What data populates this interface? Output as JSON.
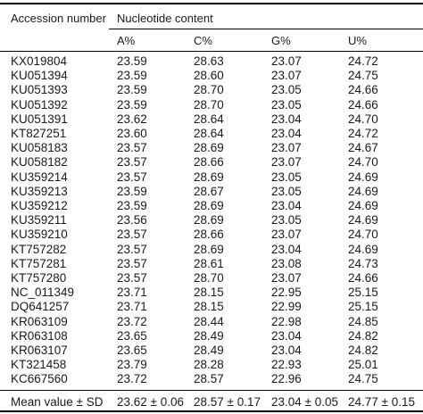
{
  "table": {
    "header": {
      "accession": "Accession number",
      "group": "Nucleotide content",
      "cols": [
        "A%",
        "C%",
        "G%",
        "U%"
      ]
    },
    "rows": [
      {
        "acc": "KX019804",
        "a": "23.59",
        "c": "28.63",
        "g": "23.07",
        "u": "24.72"
      },
      {
        "acc": "KU051394",
        "a": "23.59",
        "c": "28.60",
        "g": "23.07",
        "u": "24.75"
      },
      {
        "acc": "KU051393",
        "a": "23.59",
        "c": "28.70",
        "g": "23.05",
        "u": "24.66"
      },
      {
        "acc": "KU051392",
        "a": "23.59",
        "c": "28.70",
        "g": "23.05",
        "u": "24.66"
      },
      {
        "acc": "KU051391",
        "a": "23.62",
        "c": "28.64",
        "g": "23.04",
        "u": "24.70"
      },
      {
        "acc": "KT827251",
        "a": "23.60",
        "c": "28.64",
        "g": "23.04",
        "u": "24.72"
      },
      {
        "acc": "KU058183",
        "a": "23.57",
        "c": "28.69",
        "g": "23.07",
        "u": "24.67"
      },
      {
        "acc": "KU058182",
        "a": "23.57",
        "c": "28.66",
        "g": "23.07",
        "u": "24.70"
      },
      {
        "acc": "KU359214",
        "a": "23.57",
        "c": "28.69",
        "g": "23.05",
        "u": "24.69"
      },
      {
        "acc": "KU359213",
        "a": "23.59",
        "c": "28.67",
        "g": "23.05",
        "u": "24.69"
      },
      {
        "acc": "KU359212",
        "a": "23.59",
        "c": "28.69",
        "g": "23.04",
        "u": "24.69"
      },
      {
        "acc": "KU359211",
        "a": "23.56",
        "c": "28.69",
        "g": "23.05",
        "u": "24.69"
      },
      {
        "acc": "KU359210",
        "a": "23.57",
        "c": "28.66",
        "g": "23.07",
        "u": "24.70"
      },
      {
        "acc": "KT757282",
        "a": "23.57",
        "c": "28.69",
        "g": "23.04",
        "u": "24.69"
      },
      {
        "acc": "KT757281",
        "a": "23.57",
        "c": "28.61",
        "g": "23.08",
        "u": "24.73"
      },
      {
        "acc": "KT757280",
        "a": "23.57",
        "c": "28.70",
        "g": "23.07",
        "u": "24.66"
      },
      {
        "acc": "NC_011349",
        "a": "23.71",
        "c": "28.15",
        "g": "22.95",
        "u": "25.15"
      },
      {
        "acc": "DQ641257",
        "a": "23.71",
        "c": "28.15",
        "g": "22.99",
        "u": "25.15"
      },
      {
        "acc": "KR063109",
        "a": "23.72",
        "c": "28.44",
        "g": "22.98",
        "u": "24.85"
      },
      {
        "acc": "KR063108",
        "a": "23.65",
        "c": "28.49",
        "g": "23.04",
        "u": "24.82"
      },
      {
        "acc": "KR063107",
        "a": "23.65",
        "c": "28.49",
        "g": "23.04",
        "u": "24.82"
      },
      {
        "acc": "KT321458",
        "a": "23.79",
        "c": "28.28",
        "g": "22.93",
        "u": "25.01"
      },
      {
        "acc": "KC667560",
        "a": "23.72",
        "c": "28.57",
        "g": "22.96",
        "u": "24.75"
      }
    ],
    "summary": {
      "label": "Mean value ± SD",
      "a": "23.62 ± 0.06",
      "c": "28.57 ± 0.17",
      "g": "23.04 ± 0.05",
      "u": "24.77 ± 0.15"
    }
  }
}
